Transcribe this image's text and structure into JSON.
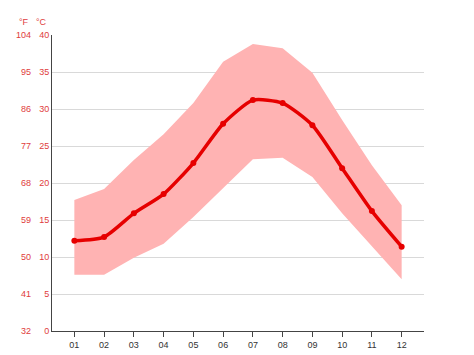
{
  "chart_data": {
    "type": "line",
    "categories": [
      "01",
      "02",
      "03",
      "04",
      "05",
      "06",
      "07",
      "08",
      "09",
      "10",
      "11",
      "12"
    ],
    "series": [
      {
        "type": "area",
        "color": "#ffb3b3",
        "values": [
          17.7,
          19.2,
          23.1,
          26.6,
          30.8,
          36.4,
          38.8,
          38.2,
          34.9,
          28.5,
          22.4,
          17.0
        ]
      },
      {
        "type": "area",
        "color": "#ffb3b3",
        "values": [
          7.6,
          7.6,
          9.9,
          11.8,
          15.4,
          19.3,
          23.2,
          23.4,
          20.8,
          15.9,
          11.5,
          7.0
        ]
      },
      {
        "type": "line",
        "color": "#e60000",
        "marker": "circle",
        "values": [
          12.2,
          12.7,
          15.9,
          18.5,
          22.7,
          28.0,
          31.2,
          30.8,
          27.8,
          22.0,
          16.2,
          11.4
        ]
      }
    ],
    "y_label": "°C",
    "ylim": [
      0,
      40
    ],
    "yticks": [
      0,
      5,
      10,
      15,
      20,
      25,
      30,
      35,
      40
    ],
    "y2_label": "°F",
    "y2lim": [
      32,
      104
    ],
    "y2ticks": [
      32,
      41,
      50,
      59,
      68,
      77,
      86,
      95,
      104
    ],
    "grid": true
  }
}
